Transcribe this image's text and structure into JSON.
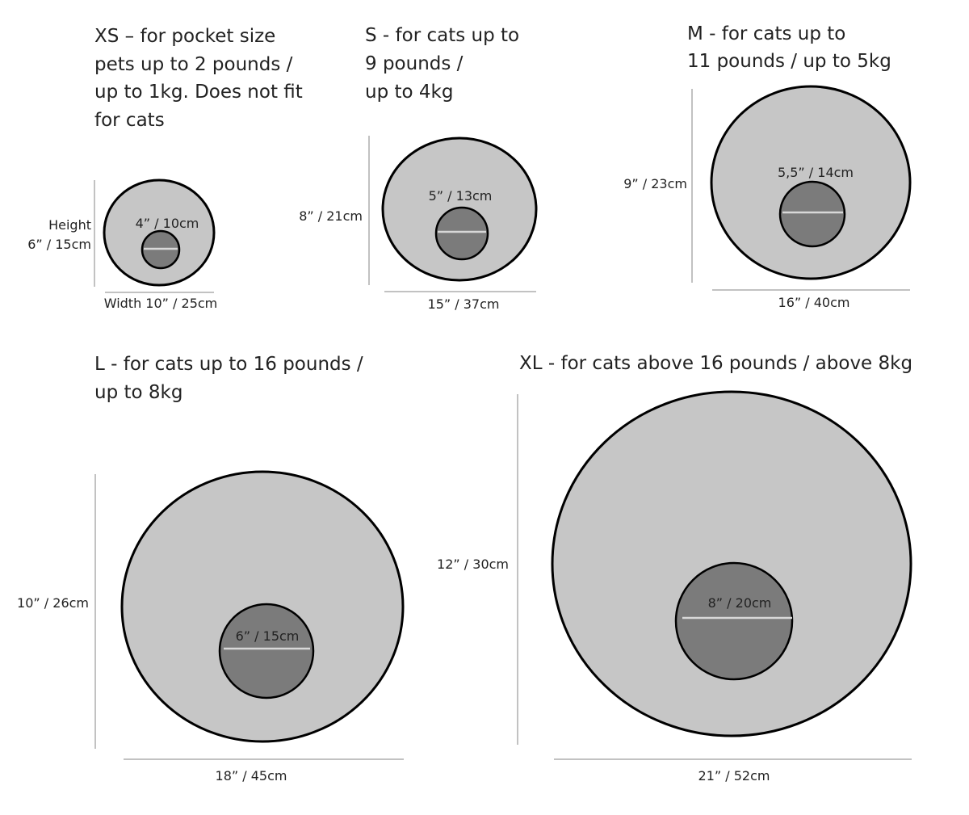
{
  "colors": {
    "bed": "#c6c6c6",
    "entrance": "#7b7b7b",
    "outline": "#000000"
  },
  "sizes": {
    "xs": {
      "title": [
        "XS – for pocket size",
        "pets up to 2 pounds /",
        "up to 1kg. Does not fit",
        "for cats"
      ],
      "height_label": [
        "Height",
        "6” / 15cm"
      ],
      "width_label": "Width 10” / 25cm",
      "entrance_label": "4” / 10cm"
    },
    "s": {
      "title": [
        "S - for cats up to",
        "9 pounds /",
        "up to 4kg"
      ],
      "height_label": "8” / 21cm",
      "width_label": "15” / 37cm",
      "entrance_label": "5” / 13cm"
    },
    "m": {
      "title": [
        "M - for cats up to",
        "11 pounds / up to 5kg"
      ],
      "height_label": "9” / 23cm",
      "width_label": "16” / 40cm",
      "entrance_label": "5,5” / 14cm"
    },
    "l": {
      "title": [
        "L - for cats up to 16 pounds /",
        "up to 8kg"
      ],
      "height_label": "10” / 26cm",
      "width_label": "18” / 45cm",
      "entrance_label": "6” / 15cm"
    },
    "xl": {
      "title": [
        "XL - for cats above 16 pounds / above 8kg"
      ],
      "height_label": "12” / 30cm",
      "width_label": "21” / 52cm",
      "entrance_label": "8” / 20cm"
    }
  }
}
